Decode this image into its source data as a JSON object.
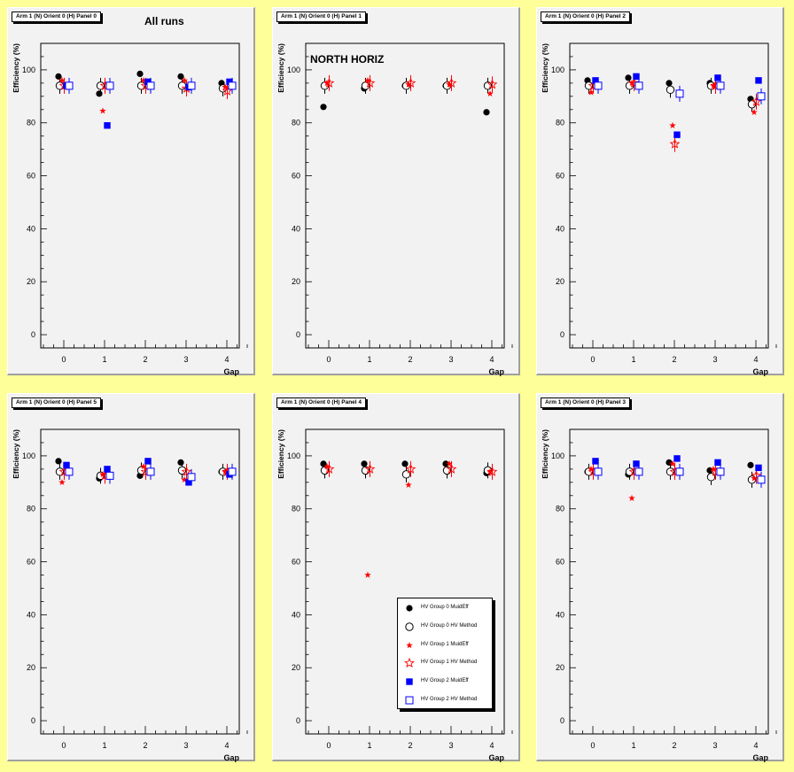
{
  "chart_data": {
    "type": "scatter",
    "categories": [
      "0",
      "1",
      "2",
      "3",
      "4"
    ],
    "xlabel": "Gap",
    "ylabel": "Efficiency (%)",
    "ylim": [
      -5,
      110
    ],
    "yticks": [
      "0",
      "20",
      "40",
      "60",
      "80",
      "100"
    ],
    "legend": [
      {
        "name": "HV Group 0 MuidEff"
      },
      {
        "name": "HV Group 0 HV Method"
      },
      {
        "name": "HV Group 1 MuidEff"
      },
      {
        "name": "HV Group 1 HV Method"
      },
      {
        "name": "HV Group 2 MuidEff"
      },
      {
        "name": "HV Group 2 HV Method"
      }
    ],
    "series_styles": [
      {
        "marker": "circle-filled",
        "color": "#000000"
      },
      {
        "marker": "circle-open",
        "color": "#000000"
      },
      {
        "marker": "star-filled",
        "color": "#ff0000"
      },
      {
        "marker": "star-open",
        "color": "#ff0000"
      },
      {
        "marker": "square-filled",
        "color": "#0000ff"
      },
      {
        "marker": "square-open",
        "color": "#0000ff"
      }
    ],
    "panels": [
      {
        "title": "Arm 1 (N) Orient 0 (H) Panel 0",
        "label": "All runs",
        "series": [
          [
            97.5,
            91,
            98.5,
            97.5,
            95
          ],
          [
            94,
            94,
            94,
            94,
            93
          ],
          [
            96,
            84.5,
            96,
            96,
            93.5
          ],
          [
            94,
            94,
            94,
            93,
            92
          ],
          [
            94,
            79,
            95.5,
            93.5,
            95.5
          ],
          [
            94,
            94,
            94,
            94,
            94
          ]
        ]
      },
      {
        "title": "Arm 1 (N) Orient 0 (H) Panel 1",
        "label": "NORTH HORIZ",
        "series": [
          [
            86,
            93,
            94,
            94,
            84
          ],
          [
            94,
            94,
            94,
            94,
            94
          ],
          [
            95,
            96,
            94.5,
            94.5,
            91
          ],
          [
            95,
            95,
            95,
            95,
            94.5
          ],
          [
            null,
            null,
            null,
            null,
            null
          ],
          [
            null,
            null,
            null,
            null,
            null
          ]
        ]
      },
      {
        "title": "Arm 1 (N) Orient 0 (H) Panel 2",
        "label": "",
        "series": [
          [
            96,
            97,
            95,
            95,
            89
          ],
          [
            94,
            94,
            92.5,
            94,
            87
          ],
          [
            91.5,
            95,
            79,
            94,
            84
          ],
          [
            94,
            95,
            72,
            94,
            88
          ],
          [
            96,
            97.5,
            75.5,
            97,
            96
          ],
          [
            94,
            94,
            91,
            94,
            90
          ]
        ]
      },
      {
        "title": "Arm 1 (N) Orient 0 (H) Panel 5",
        "label": "",
        "series": [
          [
            98,
            91.5,
            92.5,
            97.5,
            94
          ],
          [
            94,
            92.5,
            94.5,
            94.5,
            94
          ],
          [
            90,
            93,
            96,
            91,
            94
          ],
          [
            94,
            92.5,
            94,
            94,
            94
          ],
          [
            96.5,
            95,
            98,
            90,
            93
          ],
          [
            94,
            92.5,
            94,
            92,
            94
          ]
        ]
      },
      {
        "title": "Arm 1 (N) Orient 0 (H) Panel 4",
        "label": "",
        "series": [
          [
            97,
            97,
            97,
            97,
            93.5
          ],
          [
            94.5,
            94.5,
            93,
            94.5,
            94.5
          ],
          [
            96,
            55,
            89,
            97,
            94
          ],
          [
            95,
            95,
            95,
            95,
            94
          ],
          [
            null,
            null,
            null,
            null,
            null
          ],
          [
            null,
            null,
            null,
            null,
            null
          ]
        ]
      },
      {
        "title": "Arm 1 (N) Orient 0 (H) Panel 3",
        "label": "",
        "series": [
          [
            94,
            93,
            97.5,
            94.5,
            96.5
          ],
          [
            94,
            94,
            94,
            92,
            91
          ],
          [
            95,
            84,
            97,
            95,
            91.5
          ],
          [
            94,
            94,
            94,
            94,
            92.5
          ],
          [
            98,
            97,
            99,
            97.5,
            95.5
          ],
          [
            94,
            94,
            94,
            94,
            91
          ]
        ]
      }
    ]
  }
}
